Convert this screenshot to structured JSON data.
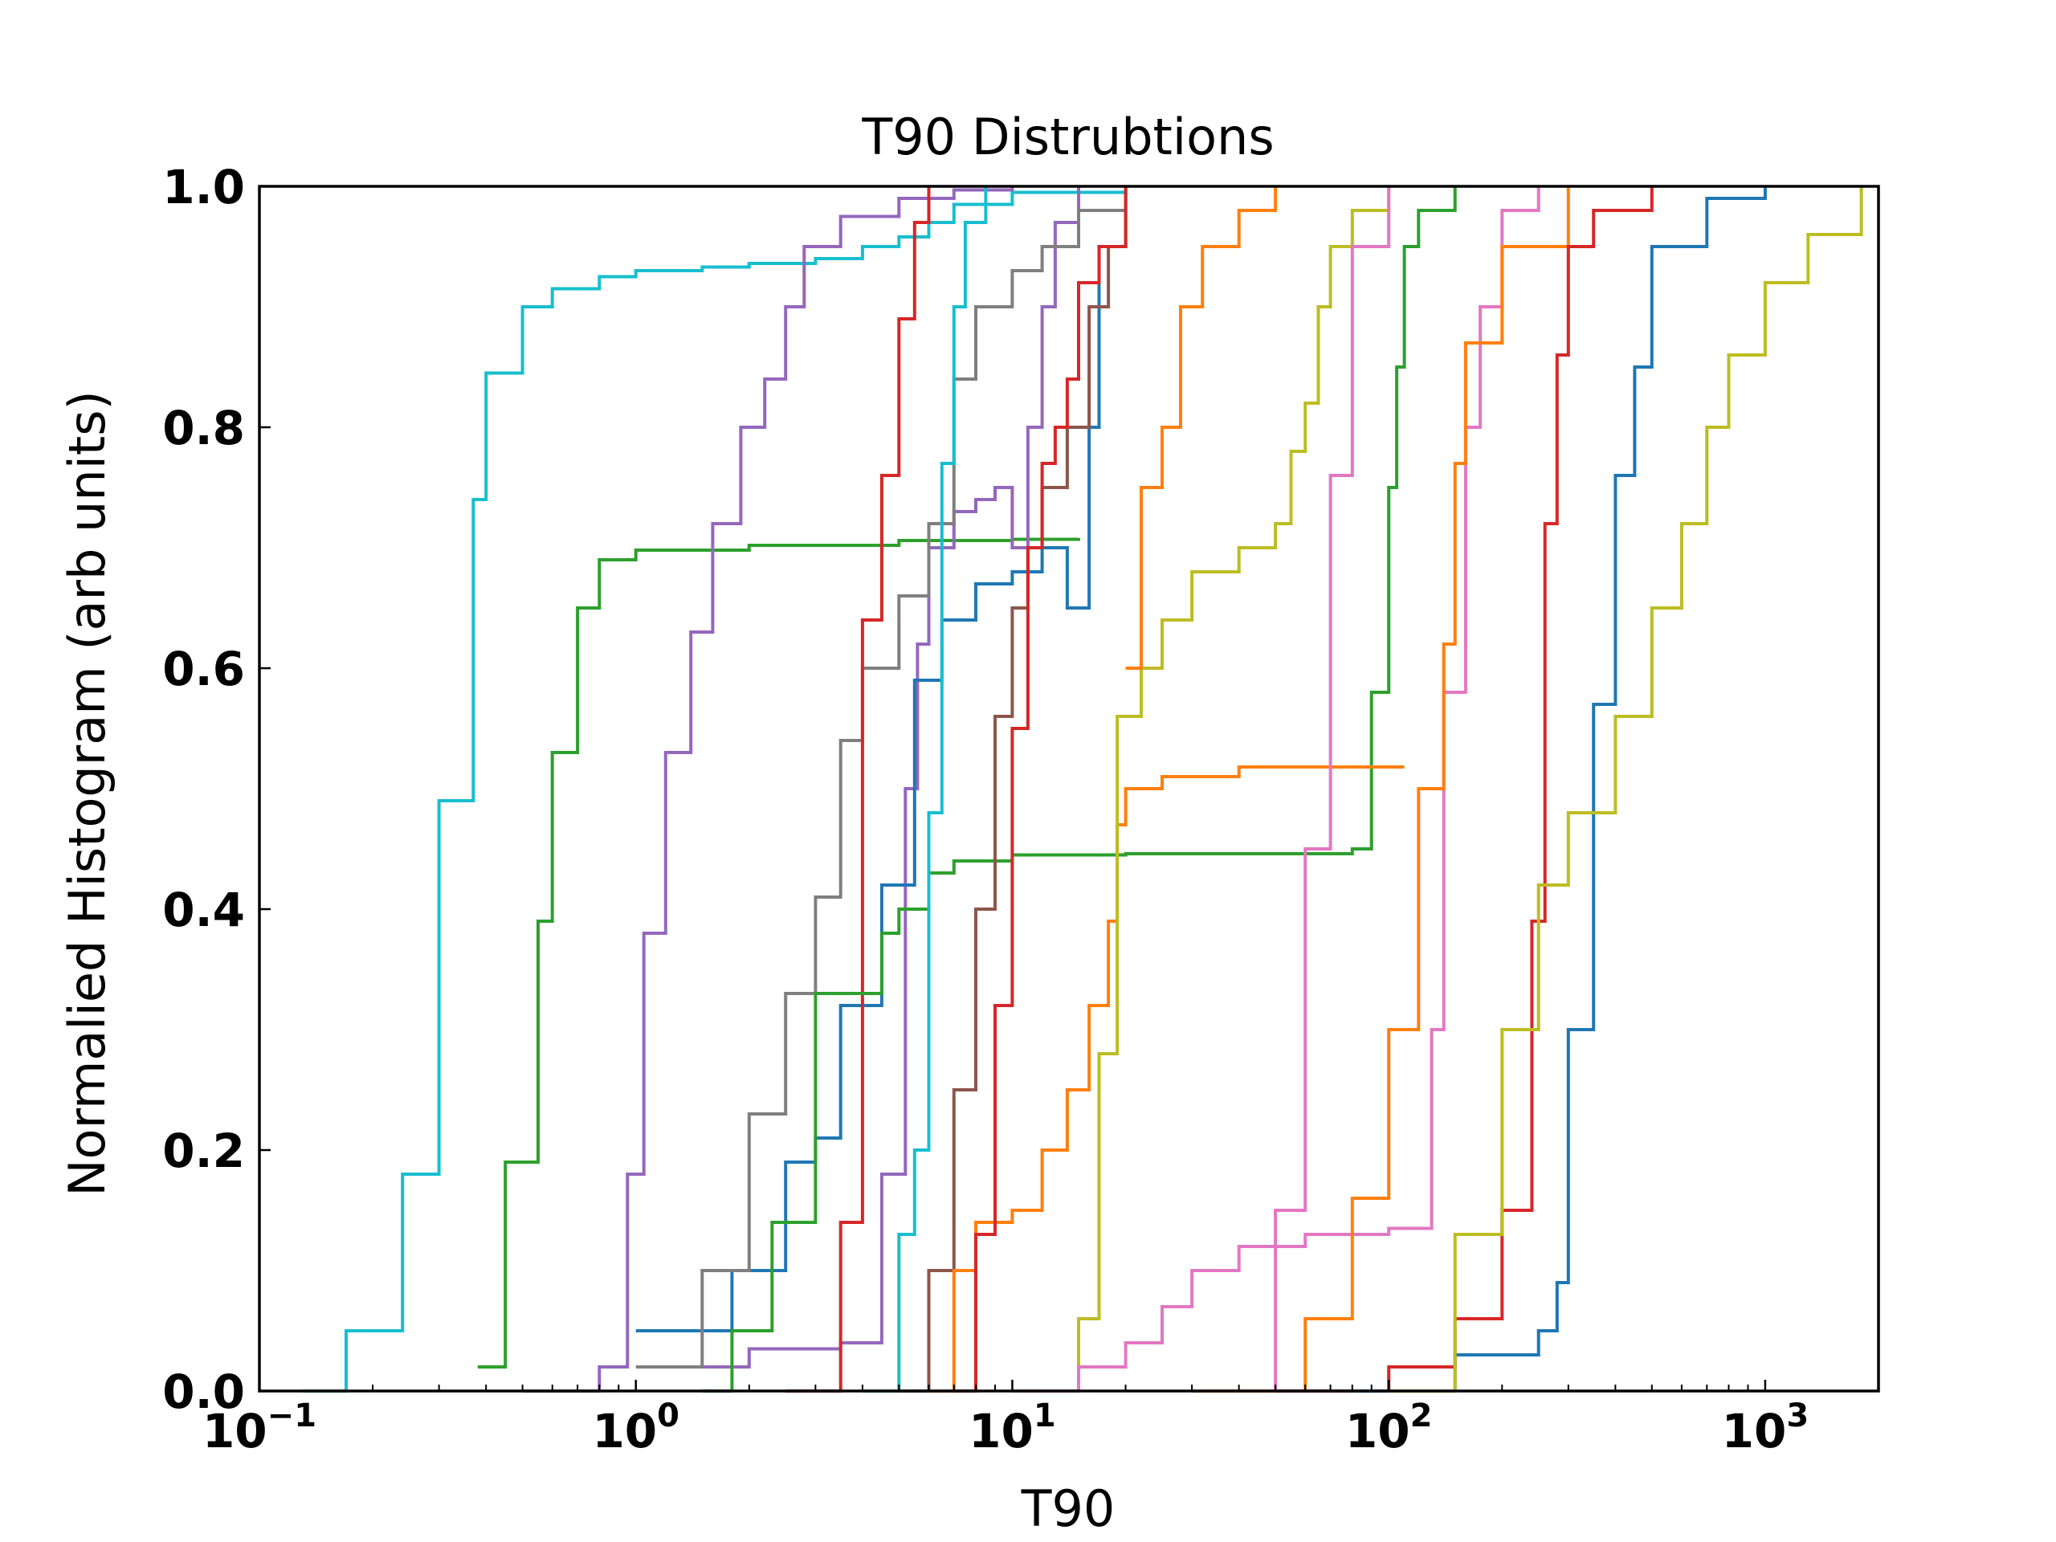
{
  "chart_data": {
    "type": "line",
    "drawstyle": "steps (cumulative histograms)",
    "title": "T90 Distrubtions",
    "xlabel": "T90",
    "ylabel": "Normalied Histogram (arb units)",
    "xscale": "log",
    "xlim": [
      0.1,
      2000
    ],
    "ylim": [
      0.0,
      1.0
    ],
    "x_ticks": [
      {
        "base": "10",
        "exp": "−1",
        "value": 0.1
      },
      {
        "base": "10",
        "exp": "0",
        "value": 1
      },
      {
        "base": "10",
        "exp": "1",
        "value": 10
      },
      {
        "base": "10",
        "exp": "2",
        "value": 100
      },
      {
        "base": "10",
        "exp": "3",
        "value": 1000
      }
    ],
    "y_ticks": [
      "0.0",
      "0.2",
      "0.4",
      "0.6",
      "0.8",
      "1.0"
    ],
    "grid": false,
    "legend": "none",
    "series": [
      {
        "color": "#17becf",
        "points": [
          [
            0.13,
            0.0
          ],
          [
            0.17,
            0.05
          ],
          [
            0.24,
            0.18
          ],
          [
            0.3,
            0.49
          ],
          [
            0.37,
            0.74
          ],
          [
            0.4,
            0.845
          ],
          [
            0.5,
            0.9
          ],
          [
            0.6,
            0.915
          ],
          [
            0.8,
            0.925
          ],
          [
            1.0,
            0.93
          ],
          [
            1.5,
            0.933
          ],
          [
            2.0,
            0.936
          ],
          [
            3.0,
            0.94
          ],
          [
            4.0,
            0.95
          ],
          [
            5.0,
            0.958
          ],
          [
            6.0,
            0.97
          ],
          [
            7.0,
            0.985
          ],
          [
            10.0,
            0.995
          ],
          [
            20.0,
            1.0
          ]
        ]
      },
      {
        "color": "#2ca02c",
        "points": [
          [
            0.38,
            0.02
          ],
          [
            0.45,
            0.19
          ],
          [
            0.55,
            0.39
          ],
          [
            0.6,
            0.53
          ],
          [
            0.7,
            0.65
          ],
          [
            0.8,
            0.69
          ],
          [
            1.0,
            0.698
          ],
          [
            2.0,
            0.702
          ],
          [
            5.0,
            0.706
          ],
          [
            10.0,
            0.707
          ],
          [
            15.0,
            0.708
          ]
        ]
      },
      {
        "color": "#9467bd",
        "points": [
          [
            0.5,
            0.0
          ],
          [
            0.8,
            0.02
          ],
          [
            0.95,
            0.18
          ],
          [
            1.05,
            0.38
          ],
          [
            1.2,
            0.53
          ],
          [
            1.4,
            0.63
          ],
          [
            1.6,
            0.72
          ],
          [
            1.9,
            0.8
          ],
          [
            2.2,
            0.84
          ],
          [
            2.5,
            0.9
          ],
          [
            2.8,
            0.95
          ],
          [
            3.5,
            0.975
          ],
          [
            5.0,
            0.99
          ],
          [
            7.0,
            0.997
          ],
          [
            10.0,
            1.0
          ]
        ]
      },
      {
        "color": "#9467bd",
        "points": [
          [
            1.2,
            0.02
          ],
          [
            2.0,
            0.035
          ],
          [
            3.5,
            0.04
          ],
          [
            4.5,
            0.18
          ],
          [
            5.2,
            0.5
          ],
          [
            5.6,
            0.62
          ],
          [
            6.0,
            0.7
          ],
          [
            7.0,
            0.73
          ],
          [
            8.0,
            0.74
          ],
          [
            9.0,
            0.75
          ],
          [
            10.0,
            0.7
          ],
          [
            11.0,
            0.8
          ],
          [
            12.0,
            0.9
          ],
          [
            13.0,
            0.97
          ],
          [
            15.0,
            1.0
          ]
        ]
      },
      {
        "color": "#1f77b4",
        "points": [
          [
            1.0,
            0.05
          ],
          [
            1.8,
            0.1
          ],
          [
            2.5,
            0.19
          ],
          [
            3.0,
            0.21
          ],
          [
            3.5,
            0.32
          ],
          [
            4.5,
            0.42
          ],
          [
            5.5,
            0.59
          ],
          [
            6.5,
            0.64
          ],
          [
            8.0,
            0.67
          ],
          [
            10.0,
            0.68
          ],
          [
            12.0,
            0.7
          ],
          [
            14.0,
            0.65
          ],
          [
            16.0,
            0.8
          ],
          [
            17.0,
            0.95
          ],
          [
            20.0,
            1.0
          ]
        ]
      },
      {
        "color": "#7f7f7f",
        "points": [
          [
            1.0,
            0.02
          ],
          [
            1.5,
            0.1
          ],
          [
            2.0,
            0.23
          ],
          [
            2.5,
            0.33
          ],
          [
            3.0,
            0.41
          ],
          [
            3.5,
            0.54
          ],
          [
            4.0,
            0.6
          ],
          [
            5.0,
            0.66
          ],
          [
            6.0,
            0.72
          ],
          [
            7.0,
            0.84
          ],
          [
            8.0,
            0.9
          ],
          [
            10.0,
            0.93
          ],
          [
            12.0,
            0.95
          ],
          [
            15.0,
            0.98
          ],
          [
            20.0,
            1.0
          ]
        ]
      },
      {
        "color": "#d62728",
        "points": [
          [
            2.5,
            0.0
          ],
          [
            3.5,
            0.14
          ],
          [
            4.0,
            0.64
          ],
          [
            4.5,
            0.76
          ],
          [
            5.0,
            0.89
          ],
          [
            5.5,
            0.97
          ],
          [
            6.0,
            1.0
          ]
        ]
      },
      {
        "color": "#2ca02c",
        "points": [
          [
            1.5,
            0.0
          ],
          [
            1.8,
            0.05
          ],
          [
            2.3,
            0.14
          ],
          [
            3.0,
            0.33
          ],
          [
            4.5,
            0.38
          ],
          [
            5.0,
            0.4
          ],
          [
            6.0,
            0.43
          ],
          [
            7.0,
            0.44
          ],
          [
            10.0,
            0.445
          ],
          [
            20.0,
            0.446
          ],
          [
            60.0,
            0.446
          ],
          [
            80.0,
            0.45
          ],
          [
            90.0,
            0.58
          ],
          [
            100.0,
            0.75
          ],
          [
            105.0,
            0.85
          ],
          [
            110.0,
            0.95
          ],
          [
            120.0,
            0.98
          ],
          [
            150.0,
            1.0
          ]
        ]
      },
      {
        "color": "#17becf",
        "points": [
          [
            4.0,
            0.0
          ],
          [
            5.0,
            0.13
          ],
          [
            5.5,
            0.2
          ],
          [
            6.0,
            0.48
          ],
          [
            6.5,
            0.77
          ],
          [
            7.0,
            0.9
          ],
          [
            7.5,
            0.97
          ],
          [
            8.5,
            1.0
          ]
        ]
      },
      {
        "color": "#8c564b",
        "points": [
          [
            5.0,
            0.0
          ],
          [
            6.0,
            0.1
          ],
          [
            7.0,
            0.25
          ],
          [
            8.0,
            0.4
          ],
          [
            9.0,
            0.56
          ],
          [
            10.0,
            0.65
          ],
          [
            11.0,
            0.7
          ],
          [
            12.0,
            0.75
          ],
          [
            14.0,
            0.8
          ],
          [
            16.0,
            0.9
          ],
          [
            18.0,
            0.95
          ],
          [
            20.0,
            1.0
          ]
        ]
      },
      {
        "color": "#ff7f0e",
        "points": [
          [
            6.0,
            0.0
          ],
          [
            7.0,
            0.1
          ],
          [
            8.0,
            0.14
          ],
          [
            10.0,
            0.15
          ],
          [
            12.0,
            0.2
          ],
          [
            14.0,
            0.25
          ],
          [
            16.0,
            0.32
          ],
          [
            18.0,
            0.39
          ],
          [
            19.0,
            0.47
          ],
          [
            20.0,
            0.5
          ],
          [
            25.0,
            0.51
          ],
          [
            40.0,
            0.518
          ],
          [
            110.0,
            0.518
          ]
        ]
      },
      {
        "color": "#d62728",
        "points": [
          [
            7.0,
            0.0
          ],
          [
            8.0,
            0.13
          ],
          [
            9.0,
            0.32
          ],
          [
            10.0,
            0.55
          ],
          [
            11.0,
            0.7
          ],
          [
            12.0,
            0.77
          ],
          [
            13.0,
            0.8
          ],
          [
            14.0,
            0.84
          ],
          [
            15.0,
            0.92
          ],
          [
            17.0,
            0.95
          ],
          [
            20.0,
            1.0
          ]
        ]
      },
      {
        "color": "#bcbd22",
        "points": [
          [
            12.0,
            0.0
          ],
          [
            15.0,
            0.06
          ],
          [
            17.0,
            0.28
          ],
          [
            19.0,
            0.56
          ],
          [
            22.0,
            0.6
          ],
          [
            25.0,
            0.64
          ],
          [
            30.0,
            0.68
          ],
          [
            40.0,
            0.7
          ],
          [
            50.0,
            0.72
          ],
          [
            55.0,
            0.78
          ],
          [
            60.0,
            0.82
          ],
          [
            65.0,
            0.9
          ],
          [
            70.0,
            0.95
          ],
          [
            80.0,
            0.98
          ],
          [
            100.0,
            1.0
          ]
        ]
      },
      {
        "color": "#ff7f0e",
        "points": [
          [
            20.0,
            0.6
          ],
          [
            22.0,
            0.75
          ],
          [
            25.0,
            0.8
          ],
          [
            28.0,
            0.9
          ],
          [
            32.0,
            0.95
          ],
          [
            40.0,
            0.98
          ],
          [
            50.0,
            1.0
          ]
        ]
      },
      {
        "color": "#e377c2",
        "points": [
          [
            10.0,
            0.0
          ],
          [
            15.0,
            0.02
          ],
          [
            20.0,
            0.04
          ],
          [
            25.0,
            0.07
          ],
          [
            30.0,
            0.1
          ],
          [
            40.0,
            0.12
          ],
          [
            60.0,
            0.13
          ],
          [
            100.0,
            0.135
          ],
          [
            130.0,
            0.3
          ],
          [
            140.0,
            0.58
          ],
          [
            160.0,
            0.8
          ],
          [
            175.0,
            0.9
          ],
          [
            200.0,
            0.98
          ],
          [
            250.0,
            1.0
          ]
        ]
      },
      {
        "color": "#e377c2",
        "points": [
          [
            30.0,
            0.0
          ],
          [
            50.0,
            0.15
          ],
          [
            60.0,
            0.45
          ],
          [
            70.0,
            0.76
          ],
          [
            80.0,
            0.95
          ],
          [
            100.0,
            1.0
          ]
        ]
      },
      {
        "color": "#ff7f0e",
        "points": [
          [
            30.0,
            0.0
          ],
          [
            60.0,
            0.06
          ],
          [
            80.0,
            0.16
          ],
          [
            100.0,
            0.3
          ],
          [
            120.0,
            0.5
          ],
          [
            140.0,
            0.62
          ],
          [
            150.0,
            0.77
          ],
          [
            160.0,
            0.87
          ],
          [
            200.0,
            0.95
          ],
          [
            300.0,
            1.0
          ]
        ]
      },
      {
        "color": "#d62728",
        "points": [
          [
            50.0,
            0.0
          ],
          [
            100.0,
            0.02
          ],
          [
            150.0,
            0.06
          ],
          [
            200.0,
            0.15
          ],
          [
            240.0,
            0.39
          ],
          [
            260.0,
            0.72
          ],
          [
            280.0,
            0.86
          ],
          [
            300.0,
            0.95
          ],
          [
            350.0,
            0.98
          ],
          [
            500.0,
            1.0
          ]
        ]
      },
      {
        "color": "#1f77b4",
        "points": [
          [
            80.0,
            0.0
          ],
          [
            150.0,
            0.03
          ],
          [
            250.0,
            0.05
          ],
          [
            280.0,
            0.09
          ],
          [
            300.0,
            0.3
          ],
          [
            350.0,
            0.57
          ],
          [
            400.0,
            0.76
          ],
          [
            450.0,
            0.85
          ],
          [
            500.0,
            0.95
          ],
          [
            700.0,
            0.99
          ],
          [
            1000.0,
            1.0
          ]
        ]
      },
      {
        "color": "#bcbd22",
        "points": [
          [
            100.0,
            0.0
          ],
          [
            150.0,
            0.13
          ],
          [
            200.0,
            0.3
          ],
          [
            250.0,
            0.42
          ],
          [
            300.0,
            0.48
          ],
          [
            400.0,
            0.56
          ],
          [
            500.0,
            0.65
          ],
          [
            600.0,
            0.72
          ],
          [
            700.0,
            0.8
          ],
          [
            800.0,
            0.86
          ],
          [
            1000.0,
            0.92
          ],
          [
            1300.0,
            0.96
          ],
          [
            1800.0,
            1.0
          ]
        ]
      }
    ]
  }
}
